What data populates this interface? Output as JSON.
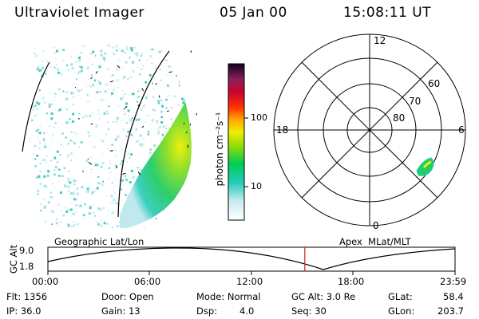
{
  "header": {
    "title": "Ultraviolet Imager",
    "date": "05 Jan 00",
    "time": "15:08:11 UT"
  },
  "colorbar": {
    "label": "photon cm⁻²s⁻¹",
    "ticks": [
      "100",
      "10"
    ],
    "colors": [
      "#d8f0f0",
      "#22ccbb",
      "#00cc44",
      "#eeee00",
      "#ff9900",
      "#ff2200",
      "#aa0044",
      "#441144",
      "#000022"
    ]
  },
  "polar_plot": {
    "mlt_labels": [
      "12",
      "18",
      "6",
      "0"
    ],
    "lat_labels": [
      "60",
      "70",
      "80"
    ]
  },
  "track_panel": {
    "ylabel": "GC Alt",
    "y_ticks": [
      "9.0",
      "1.8"
    ],
    "left_title": "Geographic Lat/Lon",
    "right_title": "Apex  MLat/MLT",
    "time_ticks": [
      "00:00",
      "06:00",
      "12:00",
      "18:00",
      "23:59"
    ],
    "current_time_fraction": 0.631
  },
  "footer": {
    "flt": "Flt: 1356",
    "ip": "IP: 36.0",
    "door": "Door: Open",
    "gain": "Gain: 13",
    "mode": "Mode: Normal",
    "dsp_label": "Dsp:",
    "dsp_value": "4.0",
    "gc_alt": "GC Alt: 3.0 Re",
    "seq": "Seq: 30",
    "glat_label": "GLat:",
    "glat_value": "58.4",
    "glon_label": "GLon:",
    "glon_value": "203.7"
  }
}
